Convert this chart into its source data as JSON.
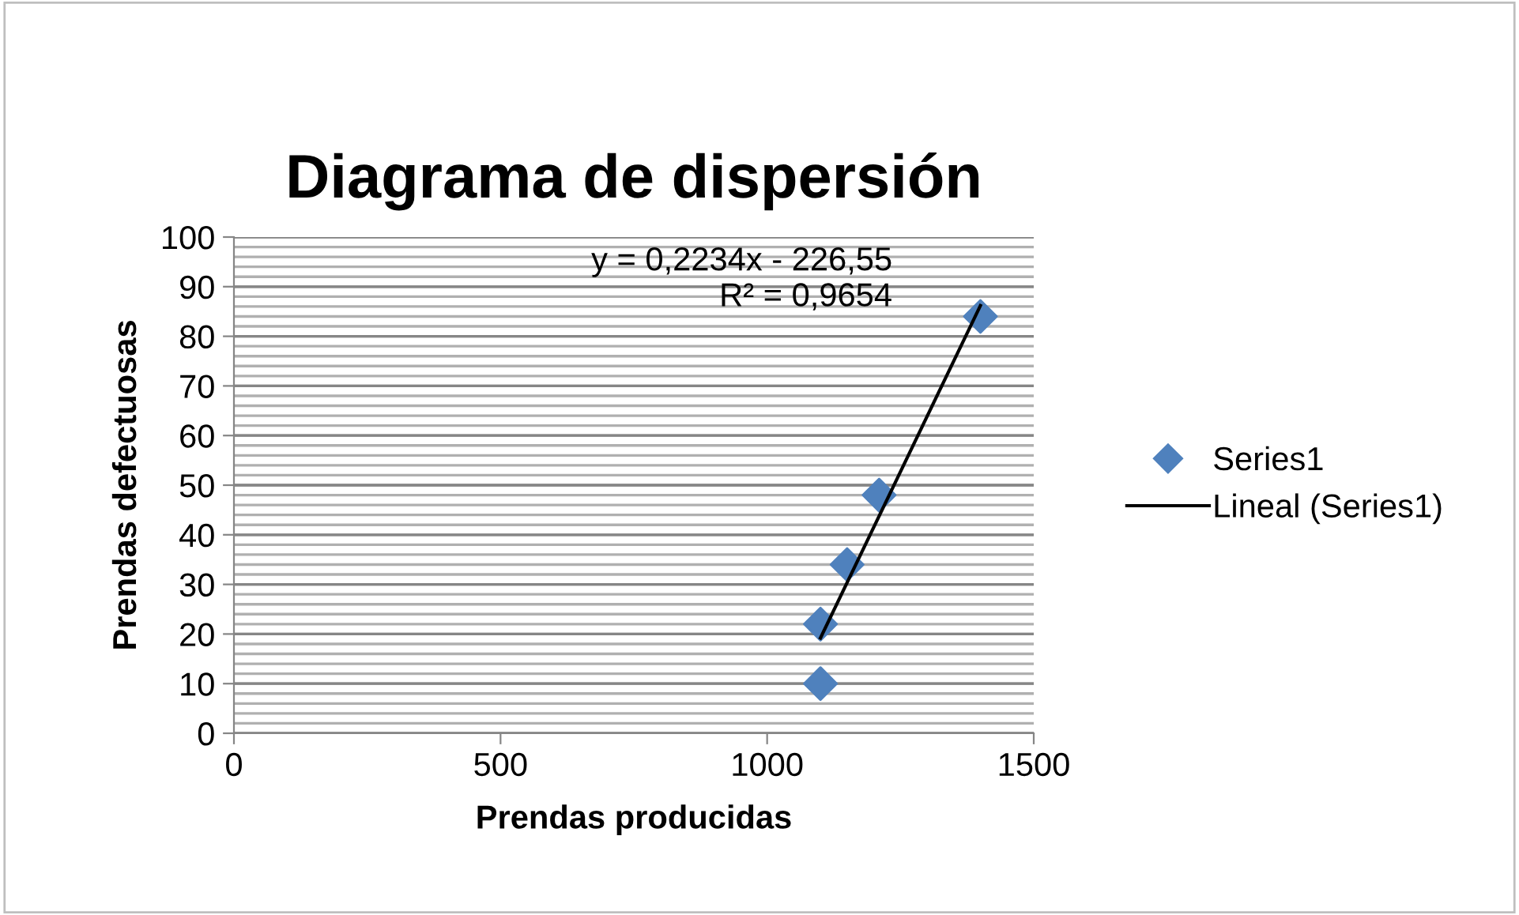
{
  "chart_data": {
    "type": "scatter",
    "title": "Diagrama de dispersión",
    "xlabel": "Prendas producidas",
    "ylabel": "Prendas defectuosas",
    "series": [
      {
        "name": "Series1",
        "color": "#4f81bd",
        "marker": "diamond",
        "x": [
          1100,
          1100,
          1150,
          1210,
          1400
        ],
        "values": [
          10,
          22,
          34,
          48,
          84
        ]
      },
      {
        "name": "Lineal (Series1)",
        "type": "line",
        "color": "#000000",
        "marker": "none",
        "line_style": "solid",
        "x": [
          1100,
          1400
        ],
        "values": [
          19.2,
          86.2
        ]
      }
    ],
    "annotations": [
      "y = 0,2234x - 226,55",
      "R² = 0,9654"
    ],
    "xlim": [
      0,
      1500
    ],
    "xticks": [
      0,
      500,
      1000,
      1500
    ],
    "ylim": [
      0,
      100
    ],
    "yticks": [
      0,
      10,
      20,
      30,
      40,
      50,
      60,
      70,
      80,
      90,
      100
    ],
    "grid": "y",
    "legend": "right"
  }
}
